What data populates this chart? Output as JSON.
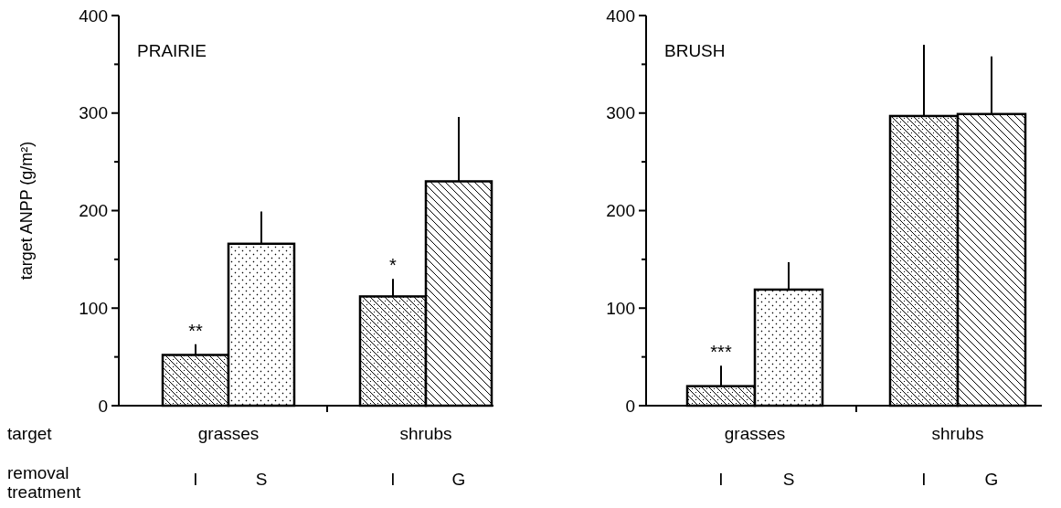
{
  "chart_data": [
    {
      "type": "bar",
      "title": "PRAIRIE",
      "ylabel": "target ANPP (g/m²)",
      "categories": [
        "I",
        "S",
        null,
        "I",
        "G"
      ],
      "values": [
        52,
        166,
        null,
        112,
        230
      ],
      "colors": [
        "#000000",
        "#000000",
        null,
        "#000000",
        "#000000"
      ],
      "errors": [
        [
          52,
          63
        ],
        [
          166,
          199
        ],
        null,
        [
          112,
          130
        ],
        [
          230,
          296
        ]
      ],
      "value_labels": [
        "**",
        null,
        null,
        "*",
        null
      ],
      "ylim": [
        0,
        400
      ],
      "yticks": [
        0,
        {
          "value": 50,
          "label": null
        },
        100,
        {
          "value": 150,
          "label": null
        },
        200,
        {
          "value": 250,
          "label": null
        },
        300,
        {
          "value": 350,
          "label": null
        },
        400
      ],
      "annotations": [
        "grasses",
        "shrubs",
        "target",
        "removal treatment"
      ]
    },
    {
      "type": "bar",
      "title": "BRUSH",
      "categories": [
        "I",
        "S",
        null,
        "I",
        "G"
      ],
      "values": [
        20,
        119,
        null,
        297,
        299
      ],
      "colors": [
        "#000000",
        "#000000",
        null,
        "#000000",
        "#000000"
      ],
      "errors": [
        [
          20,
          41
        ],
        [
          119,
          147
        ],
        null,
        [
          297,
          370
        ],
        [
          299,
          358
        ]
      ],
      "value_labels": [
        "***",
        null,
        null,
        null,
        null
      ],
      "ylim": [
        0,
        400
      ],
      "yticks": [
        0,
        {
          "value": 50,
          "label": null
        },
        100,
        {
          "value": 150,
          "label": null
        },
        200,
        {
          "value": 250,
          "label": null
        },
        300,
        {
          "value": 350,
          "label": null
        },
        400
      ],
      "annotations": [
        "grasses",
        "shrubs"
      ]
    }
  ]
}
